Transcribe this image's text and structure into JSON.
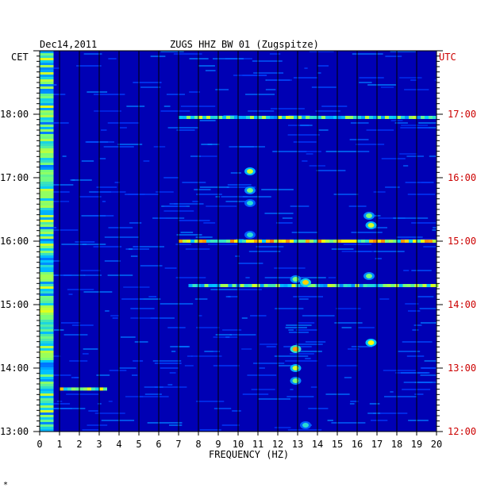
{
  "header": {
    "date": "Dec14,2011",
    "station": "ZUGS HHZ BW 01 (Zugspitze)",
    "left_zone": "CET",
    "right_zone": "UTC"
  },
  "corner_mark": "*",
  "colors": {
    "background": "#0000b4",
    "right_axis_text": "#cc0000",
    "grid": "#000000"
  },
  "chart_data": {
    "type": "heatmap",
    "title": "ZUGS HHZ BW 01 (Zugspitze)",
    "xlabel": "FREQUENCY (HZ)",
    "ylabel": "",
    "xlim": [
      0,
      20
    ],
    "x_ticks": [
      "0",
      "1",
      "2",
      "3",
      "4",
      "5",
      "6",
      "7",
      "8",
      "9",
      "10",
      "11",
      "12",
      "13",
      "14",
      "15",
      "16",
      "17",
      "18",
      "19",
      "20"
    ],
    "y_left_ticks": [
      "13:00",
      "14:00",
      "15:00",
      "16:00",
      "17:00",
      "18:00"
    ],
    "y_right_ticks": [
      "12:00",
      "13:00",
      "14:00",
      "15:00",
      "16:00",
      "17:00"
    ],
    "time_range_hours": [
      13.0,
      19.0
    ],
    "grid": "vertical lines every 1 Hz",
    "features": [
      {
        "kind": "low-frequency band",
        "freq": [
          0.0,
          0.7
        ],
        "time": [
          13.0,
          19.0
        ],
        "level": 0.55
      },
      {
        "kind": "horizontal line",
        "time": 17.95,
        "freq": [
          7.0,
          20.0
        ],
        "level": 0.6
      },
      {
        "kind": "horizontal line",
        "time": 16.0,
        "freq": [
          7.0,
          20.0
        ],
        "level": 0.75
      },
      {
        "kind": "horizontal line",
        "time": 15.3,
        "freq": [
          7.5,
          20.0
        ],
        "level": 0.6
      },
      {
        "kind": "horizontal line",
        "time": 13.67,
        "freq": [
          1.0,
          3.3
        ],
        "level": 0.7
      },
      {
        "kind": "blob",
        "freq": 10.6,
        "time": 17.1,
        "level": 0.7
      },
      {
        "kind": "blob",
        "freq": 10.6,
        "time": 16.8,
        "level": 0.6
      },
      {
        "kind": "blob",
        "freq": 10.6,
        "time": 16.6,
        "level": 0.5
      },
      {
        "kind": "blob",
        "freq": 10.6,
        "time": 16.1,
        "level": 0.5
      },
      {
        "kind": "blob",
        "freq": 16.6,
        "time": 16.4,
        "level": 0.6
      },
      {
        "kind": "blob",
        "freq": 16.7,
        "time": 16.25,
        "level": 0.7
      },
      {
        "kind": "blob",
        "freq": 13.4,
        "time": 15.35,
        "level": 0.8
      },
      {
        "kind": "blob",
        "freq": 12.9,
        "time": 15.4,
        "level": 0.6
      },
      {
        "kind": "blob",
        "freq": 16.6,
        "time": 15.45,
        "level": 0.6
      },
      {
        "kind": "blob",
        "freq": 12.9,
        "time": 14.3,
        "level": 0.85
      },
      {
        "kind": "blob",
        "freq": 12.9,
        "time": 14.0,
        "level": 0.7
      },
      {
        "kind": "blob",
        "freq": 16.7,
        "time": 14.4,
        "level": 0.75
      },
      {
        "kind": "blob",
        "freq": 12.9,
        "time": 13.8,
        "level": 0.6
      },
      {
        "kind": "blob",
        "freq": 13.4,
        "time": 13.1,
        "level": 0.5
      }
    ]
  }
}
